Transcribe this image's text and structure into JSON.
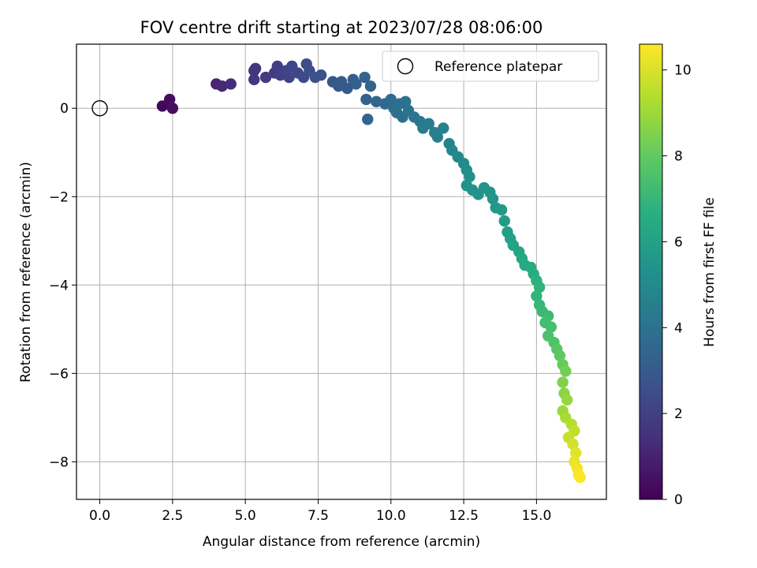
{
  "chart_data": {
    "type": "scatter",
    "title": "FOV centre drift starting at 2023/07/28 08:06:00",
    "xlabel": "Angular distance from reference (arcmin)",
    "ylabel": "Rotation from reference (arcmin)",
    "xlim": [
      -0.8,
      17.4
    ],
    "ylim": [
      -8.85,
      1.45
    ],
    "xticks": [
      "0.0",
      "2.5",
      "5.0",
      "7.5",
      "10.0",
      "12.5",
      "15.0"
    ],
    "xtick_values": [
      0,
      2.5,
      5,
      7.5,
      10,
      12.5,
      15
    ],
    "yticks": [
      "0",
      "−2",
      "−4",
      "−6",
      "−8"
    ],
    "ytick_values": [
      0,
      -2,
      -4,
      -6,
      -8
    ],
    "grid": true,
    "colormap": "viridis",
    "colorbar": {
      "label": "Hours from first FF file",
      "range": [
        0,
        10.6
      ],
      "ticks": [
        "0",
        "2",
        "4",
        "6",
        "8",
        "10"
      ],
      "tick_values": [
        0,
        2,
        4,
        6,
        8,
        10
      ]
    },
    "legend": {
      "placement": "top-right",
      "label": "Reference platepar"
    },
    "reference_point": {
      "x": 0,
      "y": 0
    },
    "points": [
      [
        2.15,
        0.05,
        0.2
      ],
      [
        2.4,
        0.2,
        0.3
      ],
      [
        2.5,
        0.0,
        0.4
      ],
      [
        4.0,
        0.55,
        1.1
      ],
      [
        4.2,
        0.5,
        1.2
      ],
      [
        4.5,
        0.55,
        1.3
      ],
      [
        5.3,
        0.85,
        1.6
      ],
      [
        5.35,
        0.9,
        1.65
      ],
      [
        5.3,
        0.65,
        1.7
      ],
      [
        5.7,
        0.7,
        1.8
      ],
      [
        6.0,
        0.8,
        1.9
      ],
      [
        6.1,
        0.95,
        1.95
      ],
      [
        6.2,
        0.75,
        2.0
      ],
      [
        6.4,
        0.85,
        2.1
      ],
      [
        6.5,
        0.7,
        2.15
      ],
      [
        6.6,
        0.95,
        2.2
      ],
      [
        6.8,
        0.8,
        2.3
      ],
      [
        7.0,
        0.7,
        2.4
      ],
      [
        7.1,
        1.0,
        2.45
      ],
      [
        7.2,
        0.85,
        2.5
      ],
      [
        7.4,
        0.7,
        2.6
      ],
      [
        7.6,
        0.75,
        2.65
      ],
      [
        8.0,
        0.6,
        2.8
      ],
      [
        8.2,
        0.5,
        2.9
      ],
      [
        8.3,
        0.6,
        2.95
      ],
      [
        8.5,
        0.45,
        3.0
      ],
      [
        8.7,
        0.65,
        3.1
      ],
      [
        8.8,
        0.55,
        3.2
      ],
      [
        9.1,
        0.7,
        3.3
      ],
      [
        9.15,
        0.2,
        3.35
      ],
      [
        9.2,
        -0.25,
        3.4
      ],
      [
        9.3,
        0.5,
        3.45
      ],
      [
        9.5,
        0.15,
        3.5
      ],
      [
        9.8,
        0.1,
        3.6
      ],
      [
        10.0,
        0.2,
        3.7
      ],
      [
        10.1,
        0.0,
        3.75
      ],
      [
        10.2,
        -0.1,
        3.8
      ],
      [
        10.3,
        0.1,
        3.85
      ],
      [
        10.4,
        -0.2,
        3.9
      ],
      [
        10.5,
        0.15,
        3.95
      ],
      [
        10.6,
        -0.05,
        4.0
      ],
      [
        10.8,
        -0.2,
        4.1
      ],
      [
        11.0,
        -0.3,
        4.2
      ],
      [
        11.1,
        -0.45,
        4.3
      ],
      [
        11.3,
        -0.35,
        4.4
      ],
      [
        11.5,
        -0.55,
        4.5
      ],
      [
        11.6,
        -0.65,
        4.55
      ],
      [
        11.8,
        -0.45,
        4.6
      ],
      [
        12.0,
        -0.8,
        4.7
      ],
      [
        12.1,
        -0.95,
        4.8
      ],
      [
        12.3,
        -1.1,
        4.9
      ],
      [
        12.5,
        -1.25,
        5.0
      ],
      [
        12.6,
        -1.4,
        5.1
      ],
      [
        12.7,
        -1.55,
        5.2
      ],
      [
        12.6,
        -1.75,
        5.3
      ],
      [
        12.8,
        -1.85,
        5.35
      ],
      [
        13.0,
        -1.95,
        5.4
      ],
      [
        13.2,
        -1.8,
        5.45
      ],
      [
        13.4,
        -1.9,
        5.5
      ],
      [
        13.5,
        -2.05,
        5.55
      ],
      [
        13.6,
        -2.25,
        5.6
      ],
      [
        13.8,
        -2.3,
        5.7
      ],
      [
        13.9,
        -2.55,
        5.8
      ],
      [
        14.0,
        -2.8,
        5.9
      ],
      [
        14.1,
        -2.95,
        6.0
      ],
      [
        14.2,
        -3.1,
        6.1
      ],
      [
        14.4,
        -3.25,
        6.2
      ],
      [
        14.5,
        -3.4,
        6.3
      ],
      [
        14.6,
        -3.55,
        6.4
      ],
      [
        14.8,
        -3.6,
        6.5
      ],
      [
        14.9,
        -3.75,
        6.6
      ],
      [
        15.0,
        -3.9,
        6.7
      ],
      [
        15.1,
        -4.05,
        6.8
      ],
      [
        15.0,
        -4.25,
        6.9
      ],
      [
        15.1,
        -4.45,
        7.0
      ],
      [
        15.2,
        -4.6,
        7.1
      ],
      [
        15.4,
        -4.7,
        7.2
      ],
      [
        15.3,
        -4.85,
        7.3
      ],
      [
        15.5,
        -4.95,
        7.4
      ],
      [
        15.4,
        -5.15,
        7.5
      ],
      [
        15.6,
        -5.3,
        7.6
      ],
      [
        15.7,
        -5.45,
        7.8
      ],
      [
        15.8,
        -5.6,
        7.9
      ],
      [
        15.9,
        -5.8,
        8.1
      ],
      [
        16.0,
        -5.95,
        8.3
      ],
      [
        15.9,
        -6.2,
        8.5
      ],
      [
        15.95,
        -6.45,
        8.7
      ],
      [
        16.05,
        -6.6,
        8.9
      ],
      [
        15.9,
        -6.85,
        9.0
      ],
      [
        16.0,
        -7.0,
        9.2
      ],
      [
        16.2,
        -7.15,
        9.4
      ],
      [
        16.3,
        -7.3,
        9.6
      ],
      [
        16.1,
        -7.45,
        9.7
      ],
      [
        16.25,
        -7.6,
        9.9
      ],
      [
        16.35,
        -7.8,
        10.1
      ],
      [
        16.3,
        -8.0,
        10.3
      ],
      [
        16.4,
        -8.15,
        10.4
      ],
      [
        16.45,
        -8.3,
        10.5
      ],
      [
        16.5,
        -8.35,
        10.6
      ]
    ]
  }
}
